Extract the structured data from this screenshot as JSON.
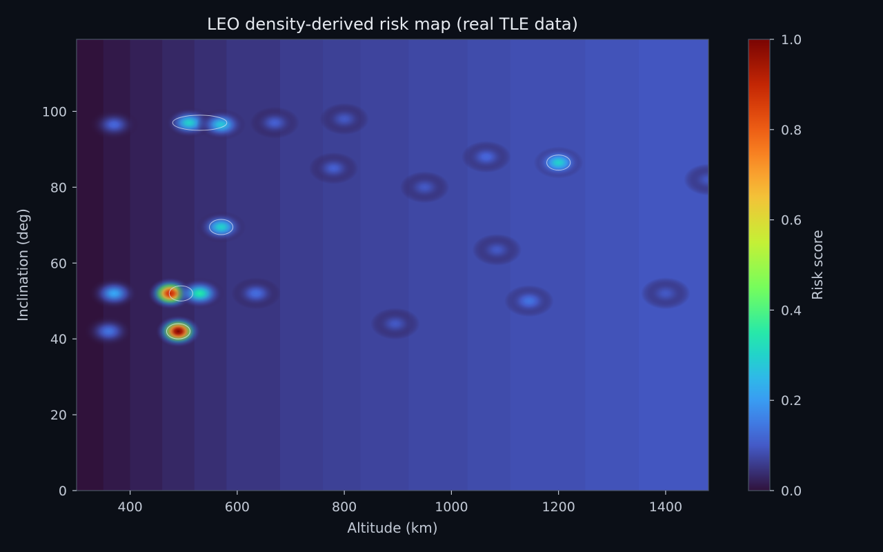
{
  "chart_data": {
    "type": "heatmap",
    "title": "LEO density-derived risk map (real TLE data)",
    "xlabel": "Altitude (km)",
    "ylabel": "Inclination (deg)",
    "xlim": [
      300,
      1480
    ],
    "ylim": [
      0,
      119
    ],
    "xticks": [
      400,
      600,
      800,
      1000,
      1200,
      1400
    ],
    "yticks": [
      0,
      20,
      40,
      60,
      80,
      100
    ],
    "colorbar": {
      "label": "Risk score",
      "range": [
        0,
        1
      ],
      "ticks": [
        0.0,
        0.2,
        0.4,
        0.6,
        0.8,
        1.0
      ],
      "tick_labels": [
        "0.0",
        "0.2",
        "0.4",
        "0.6",
        "0.8",
        "1.0"
      ],
      "colormap": [
        "#30123b",
        "#4662d7",
        "#36aaf9",
        "#1ae4b6",
        "#72fe5e",
        "#c8ef34",
        "#faba39",
        "#f66b19",
        "#cb2a04",
        "#7a0403"
      ]
    },
    "background_bands": [
      {
        "alt": [
          300,
          350
        ],
        "risk": 0.0
      },
      {
        "alt": [
          350,
          400
        ],
        "risk": 0.01
      },
      {
        "alt": [
          400,
          460
        ],
        "risk": 0.02
      },
      {
        "alt": [
          460,
          520
        ],
        "risk": 0.03
      },
      {
        "alt": [
          520,
          580
        ],
        "risk": 0.04
      },
      {
        "alt": [
          580,
          680
        ],
        "risk": 0.05
      },
      {
        "alt": [
          680,
          760
        ],
        "risk": 0.06
      },
      {
        "alt": [
          760,
          830
        ],
        "risk": 0.065
      },
      {
        "alt": [
          830,
          920
        ],
        "risk": 0.07
      },
      {
        "alt": [
          920,
          1030
        ],
        "risk": 0.075
      },
      {
        "alt": [
          1030,
          1110
        ],
        "risk": 0.08
      },
      {
        "alt": [
          1110,
          1250
        ],
        "risk": 0.085
      },
      {
        "alt": [
          1250,
          1350
        ],
        "risk": 0.09
      },
      {
        "alt": [
          1350,
          1480
        ],
        "risk": 0.095
      }
    ],
    "hotspots": [
      {
        "alt": 490,
        "inc": 42,
        "risk": 1.0
      },
      {
        "alt": 475,
        "inc": 52,
        "risk": 0.9
      },
      {
        "alt": 530,
        "inc": 52,
        "risk": 0.35
      },
      {
        "alt": 370,
        "inc": 52,
        "risk": 0.22
      },
      {
        "alt": 635,
        "inc": 52,
        "risk": 0.13
      },
      {
        "alt": 360,
        "inc": 42,
        "risk": 0.14
      },
      {
        "alt": 510,
        "inc": 97,
        "risk": 0.3
      },
      {
        "alt": 570,
        "inc": 96.5,
        "risk": 0.28
      },
      {
        "alt": 370,
        "inc": 96.5,
        "risk": 0.12
      },
      {
        "alt": 670,
        "inc": 97,
        "risk": 0.11
      },
      {
        "alt": 800,
        "inc": 98,
        "risk": 0.1
      },
      {
        "alt": 570,
        "inc": 69.5,
        "risk": 0.3
      },
      {
        "alt": 1200,
        "inc": 86.5,
        "risk": 0.3
      },
      {
        "alt": 1065,
        "inc": 88,
        "risk": 0.12
      },
      {
        "alt": 780,
        "inc": 85,
        "risk": 0.11
      },
      {
        "alt": 950,
        "inc": 80,
        "risk": 0.1
      },
      {
        "alt": 1085,
        "inc": 63.5,
        "risk": 0.1
      },
      {
        "alt": 1145,
        "inc": 50,
        "risk": 0.14
      },
      {
        "alt": 1400,
        "inc": 52,
        "risk": 0.1
      },
      {
        "alt": 895,
        "inc": 44,
        "risk": 0.1
      },
      {
        "alt": 1480,
        "inc": 82,
        "risk": 0.1
      }
    ],
    "contour_lines": [
      {
        "level": 0.2,
        "alt": 490,
        "inc": 42
      },
      {
        "level": 0.2,
        "alt": 495,
        "inc": 52
      },
      {
        "level": 0.2,
        "alt": 530,
        "inc": 97
      },
      {
        "level": 0.2,
        "alt": 570,
        "inc": 69.5
      },
      {
        "level": 0.2,
        "alt": 1200,
        "inc": 86.5
      }
    ]
  }
}
